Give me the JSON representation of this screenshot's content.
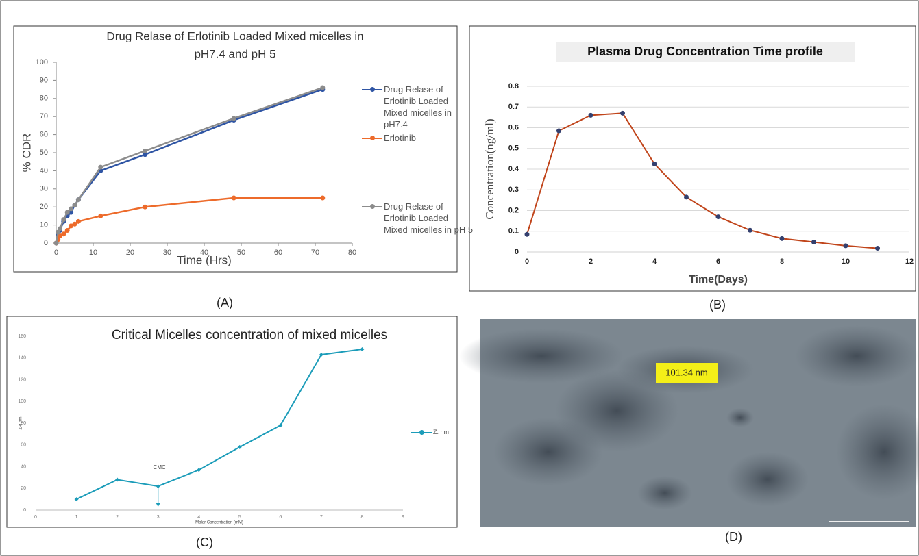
{
  "chart_data": [
    {
      "type": "line",
      "title": [
        "Drug Relase of Erlotinib Loaded Mixed micelles in",
        "pH7.4 and pH 5"
      ],
      "x_label": "Time (Hrs)",
      "y_label": "% CDR",
      "x": [
        0,
        0.5,
        1,
        2,
        3,
        4,
        5,
        6,
        12,
        24,
        48,
        72
      ],
      "series": [
        {
          "name": "Drug Relase of Erlotinib Loaded Mixed micelles in pH7.4",
          "color": "#2f55a4",
          "values": [
            0,
            5,
            7,
            12,
            15,
            17,
            21,
            24,
            40,
            49,
            68,
            85
          ]
        },
        {
          "name": "Erlotinib",
          "color": "#ed6b2b",
          "values": [
            0,
            2,
            4,
            5,
            7,
            9.5,
            10.5,
            12,
            15,
            20,
            25,
            25
          ]
        },
        {
          "name": "Drug Relase of Erlotinib Loaded Mixed micelles in pH 5",
          "color": "#8c8c8c",
          "values": [
            0,
            6,
            8,
            13,
            17,
            19,
            21,
            24,
            42,
            51,
            69,
            86
          ]
        }
      ],
      "xlim": [
        0,
        80
      ],
      "xticks": [
        0,
        10,
        20,
        30,
        40,
        50,
        60,
        70,
        80
      ],
      "ylim": [
        0,
        100
      ],
      "yticks": [
        0,
        10,
        20,
        30,
        40,
        50,
        60,
        70,
        80,
        90,
        100
      ],
      "grid": false,
      "legend": "right"
    },
    {
      "type": "line",
      "title": [
        "Plasma Drug Concentration Time profile"
      ],
      "x_label": "Time(Days)",
      "y_label": "Concentration(ng/ml)",
      "x": [
        0,
        1,
        2,
        3,
        4,
        5,
        6,
        7,
        8,
        9,
        10,
        11
      ],
      "series": [
        {
          "color": "#c0441a",
          "marker_color": "#34406e",
          "values": [
            0.085,
            0.585,
            0.66,
            0.67,
            0.425,
            0.265,
            0.17,
            0.105,
            0.065,
            0.048,
            0.03,
            0.018
          ]
        }
      ],
      "xlim": [
        0,
        12
      ],
      "xticks": [
        0,
        2,
        4,
        6,
        8,
        10,
        12
      ],
      "ylim": [
        0,
        0.8
      ],
      "yticks": [
        0,
        0.1,
        0.2,
        0.3,
        0.4,
        0.5,
        0.6,
        0.7,
        0.8
      ],
      "grid": true
    },
    {
      "type": "line",
      "title": [
        "Critical Micelles concentration of mixed micelles"
      ],
      "x_label": "Molar Concentration (mM)",
      "y_label": "Z-d.nm",
      "x": [
        1,
        2,
        3,
        4,
        5,
        6,
        7,
        8
      ],
      "series": [
        {
          "name": "Z. nm",
          "color": "#1b9cb9",
          "values": [
            10,
            28,
            22,
            37,
            58,
            78,
            143,
            148
          ]
        }
      ],
      "xlim": [
        0,
        9
      ],
      "xticks": [
        0,
        1,
        2,
        3,
        4,
        5,
        6,
        7,
        8,
        9
      ],
      "ylim": [
        0,
        160
      ],
      "yticks": [
        0,
        20,
        40,
        60,
        80,
        100,
        120,
        140,
        160
      ],
      "grid": false,
      "legend": "right",
      "annotation": "CMC"
    }
  ],
  "panels": {
    "labels": [
      "(A)",
      "(B)",
      "(C)",
      "(D)"
    ]
  },
  "image": {
    "annotation": "101.34 nm"
  }
}
